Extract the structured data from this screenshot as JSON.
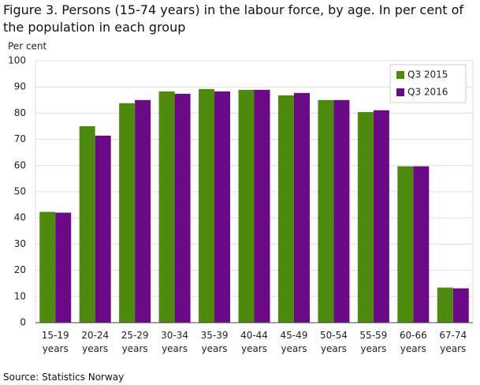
{
  "chart_data": {
    "type": "bar",
    "title": "Figure 3.  Persons (15-74 years) in the labour force, by age. In per cent of the population in each group",
    "y_label": "Per cent",
    "source": "Source: Statistics Norway",
    "categories": [
      "15-19 years",
      "20-24 years",
      "25-29 years",
      "30-34 years",
      "35-39 years",
      "40-44 years",
      "45-49 years",
      "50-54 years",
      "55-59 years",
      "60-66 years",
      "67-74 years"
    ],
    "series": [
      {
        "name": "Q3 2015",
        "color": "#4e8a0e",
        "values": [
          42.3,
          75.0,
          83.8,
          88.3,
          89.2,
          88.9,
          86.8,
          85.0,
          80.4,
          59.7,
          13.4
        ]
      },
      {
        "name": "Q3 2016",
        "color": "#6a0a87",
        "values": [
          42.0,
          71.4,
          85.0,
          87.4,
          88.3,
          88.9,
          87.7,
          85.0,
          81.1,
          59.7,
          13.1
        ]
      }
    ],
    "ylim": [
      0,
      100
    ],
    "yticks": [
      0,
      10,
      20,
      30,
      40,
      50,
      60,
      70,
      80,
      90,
      100
    ],
    "grid": true,
    "legend": "top-right"
  }
}
